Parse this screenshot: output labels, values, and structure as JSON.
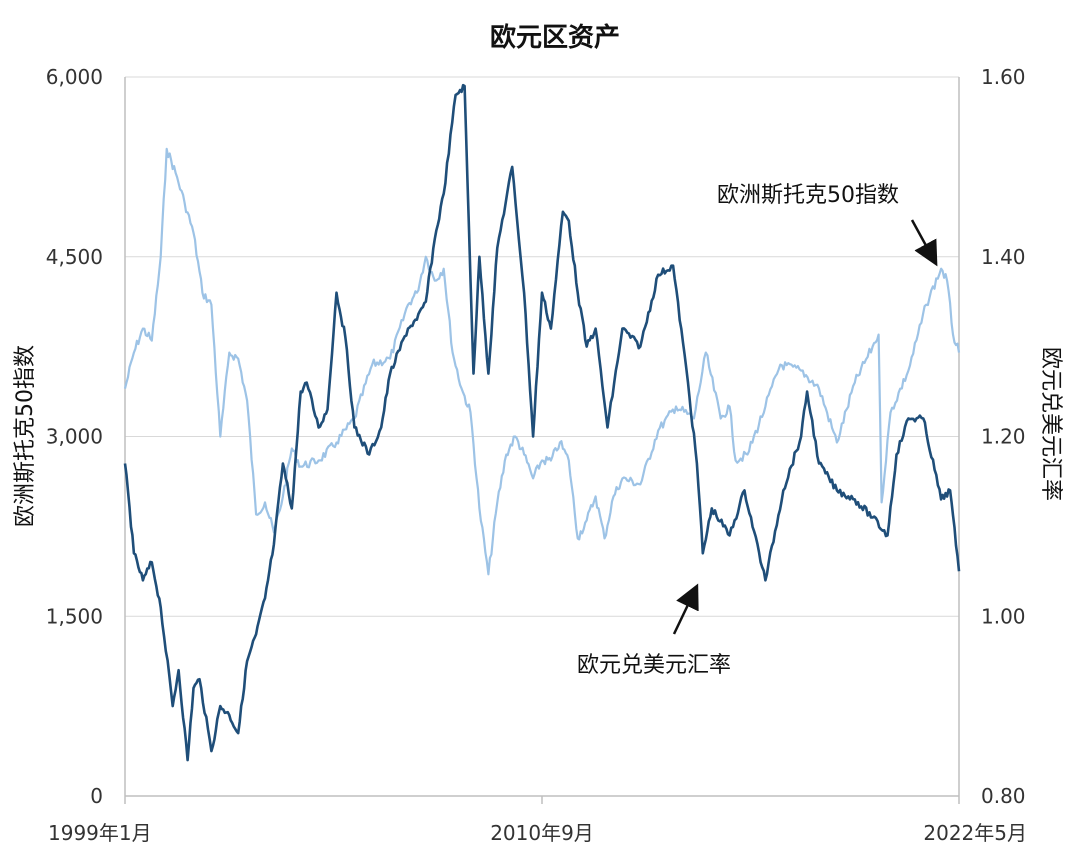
{
  "chart_data": {
    "type": "line",
    "title": "欧元区资产",
    "x_ticks": [
      "1999年1月",
      "2010年9月",
      "2022年5月"
    ],
    "x_range": [
      "1999-01",
      "2022-05"
    ],
    "left_axis": {
      "label": "欧洲斯托克50指数",
      "range": [
        0,
        6000
      ],
      "ticks": [
        "0",
        "1,500",
        "3,000",
        "4,500",
        "6,000"
      ]
    },
    "right_axis": {
      "label": "欧元兑美元汇率",
      "range": [
        0.8,
        1.6
      ],
      "ticks": [
        "0.80",
        "1.00",
        "1.20",
        "1.40",
        "1.60"
      ]
    },
    "grid": true,
    "colors": {
      "stoxx": "#9dc3e6",
      "eurusd": "#1f4e79",
      "grid": "#d9d9d9",
      "axis": "#bfbfbf"
    },
    "series": [
      {
        "name": "欧洲斯托克50指数",
        "axis": "left",
        "dates": [
          "1999-01",
          "1999-04",
          "1999-07",
          "1999-10",
          "2000-01",
          "2000-03",
          "2000-06",
          "2000-09",
          "2000-12",
          "2001-03",
          "2001-06",
          "2001-09",
          "2001-12",
          "2002-03",
          "2002-06",
          "2002-09",
          "2002-12",
          "2003-03",
          "2003-06",
          "2003-09",
          "2003-12",
          "2004-06",
          "2004-12",
          "2005-06",
          "2005-12",
          "2006-06",
          "2006-12",
          "2007-03",
          "2007-06",
          "2007-09",
          "2007-12",
          "2008-03",
          "2008-06",
          "2008-09",
          "2008-12",
          "2009-03",
          "2009-06",
          "2009-09",
          "2009-12",
          "2010-03",
          "2010-06",
          "2010-09",
          "2010-12",
          "2011-03",
          "2011-06",
          "2011-09",
          "2011-12",
          "2012-03",
          "2012-06",
          "2012-09",
          "2012-12",
          "2013-06",
          "2013-12",
          "2014-06",
          "2014-12",
          "2015-04",
          "2015-09",
          "2015-12",
          "2016-02",
          "2016-06",
          "2016-12",
          "2017-05",
          "2017-12",
          "2018-06",
          "2018-12",
          "2019-06",
          "2019-12",
          "2020-02",
          "2020-03",
          "2020-06",
          "2020-12",
          "2021-06",
          "2021-11",
          "2022-01",
          "2022-03",
          "2022-05"
        ],
        "values": [
          3400,
          3700,
          3900,
          3800,
          4500,
          5400,
          5200,
          4950,
          4700,
          4200,
          4100,
          3000,
          3700,
          3650,
          3300,
          2350,
          2450,
          2200,
          2500,
          2900,
          2750,
          2800,
          2950,
          3150,
          3600,
          3650,
          4100,
          4200,
          4500,
          4300,
          4400,
          3700,
          3400,
          3200,
          2400,
          1850,
          2450,
          2850,
          3000,
          2850,
          2650,
          2800,
          2800,
          2950,
          2800,
          2150,
          2300,
          2500,
          2150,
          2500,
          2650,
          2600,
          3050,
          3250,
          3150,
          3700,
          3150,
          3250,
          2800,
          2850,
          3250,
          3600,
          3550,
          3400,
          2950,
          3450,
          3750,
          3850,
          2450,
          3200,
          3550,
          4100,
          4400,
          4300,
          3850,
          3700
        ]
      },
      {
        "name": "欧元兑美元汇率",
        "axis": "right",
        "dates": [
          "1999-01",
          "1999-04",
          "1999-07",
          "1999-10",
          "2000-01",
          "2000-05",
          "2000-07",
          "2000-10",
          "2000-12",
          "2001-02",
          "2001-06",
          "2001-09",
          "2001-12",
          "2002-03",
          "2002-06",
          "2002-09",
          "2002-12",
          "2003-03",
          "2003-06",
          "2003-09",
          "2003-12",
          "2004-02",
          "2004-06",
          "2004-09",
          "2004-12",
          "2005-03",
          "2005-06",
          "2005-11",
          "2006-03",
          "2006-06",
          "2006-12",
          "2007-03",
          "2007-06",
          "2007-09",
          "2007-12",
          "2008-04",
          "2008-07",
          "2008-10",
          "2008-12",
          "2009-03",
          "2009-06",
          "2009-11",
          "2010-03",
          "2010-06",
          "2010-09",
          "2010-12",
          "2011-04",
          "2011-06",
          "2011-09",
          "2011-12",
          "2012-03",
          "2012-07",
          "2012-12",
          "2013-06",
          "2013-12",
          "2014-05",
          "2014-10",
          "2015-01",
          "2015-03",
          "2015-06",
          "2015-12",
          "2016-05",
          "2016-12",
          "2017-06",
          "2017-12",
          "2018-02",
          "2018-06",
          "2018-12",
          "2019-06",
          "2019-12",
          "2020-05",
          "2020-08",
          "2020-12",
          "2021-05",
          "2021-11",
          "2022-02",
          "2022-05"
        ],
        "values": [
          1.17,
          1.07,
          1.04,
          1.06,
          1.01,
          0.9,
          0.94,
          0.84,
          0.92,
          0.93,
          0.85,
          0.9,
          0.89,
          0.87,
          0.95,
          0.98,
          1.02,
          1.08,
          1.17,
          1.12,
          1.25,
          1.26,
          1.21,
          1.23,
          1.36,
          1.31,
          1.21,
          1.18,
          1.21,
          1.27,
          1.32,
          1.33,
          1.35,
          1.42,
          1.47,
          1.58,
          1.59,
          1.27,
          1.4,
          1.27,
          1.41,
          1.5,
          1.36,
          1.2,
          1.36,
          1.32,
          1.45,
          1.44,
          1.36,
          1.3,
          1.32,
          1.21,
          1.32,
          1.3,
          1.38,
          1.39,
          1.26,
          1.17,
          1.07,
          1.12,
          1.09,
          1.14,
          1.04,
          1.14,
          1.2,
          1.25,
          1.17,
          1.14,
          1.13,
          1.11,
          1.09,
          1.18,
          1.22,
          1.22,
          1.13,
          1.14,
          1.05
        ]
      }
    ],
    "annotations": [
      {
        "text": "欧洲斯托克50指数",
        "target_series": "欧洲斯托克50指数",
        "target_date": "2022-01"
      },
      {
        "text": "欧元兑美元汇率",
        "target_series": "欧元兑美元汇率",
        "target_date": "2015-03"
      }
    ]
  }
}
